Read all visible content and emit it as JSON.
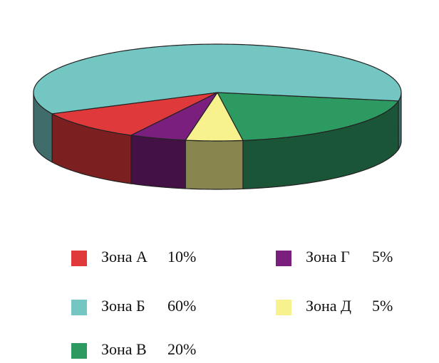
{
  "chart_data": {
    "type": "pie3d",
    "categories": [
      "Зона А",
      "Зона Б",
      "Зона В",
      "Зона Г",
      "Зона Д"
    ],
    "values": [
      10,
      60,
      20,
      5,
      5
    ],
    "value_labels": [
      "10%",
      "60%",
      "20%",
      "5%",
      "5%"
    ],
    "colors": [
      "#e0393b",
      "#74c6c3",
      "#2d9a62",
      "#7a1f7e",
      "#f7f28e"
    ]
  }
}
